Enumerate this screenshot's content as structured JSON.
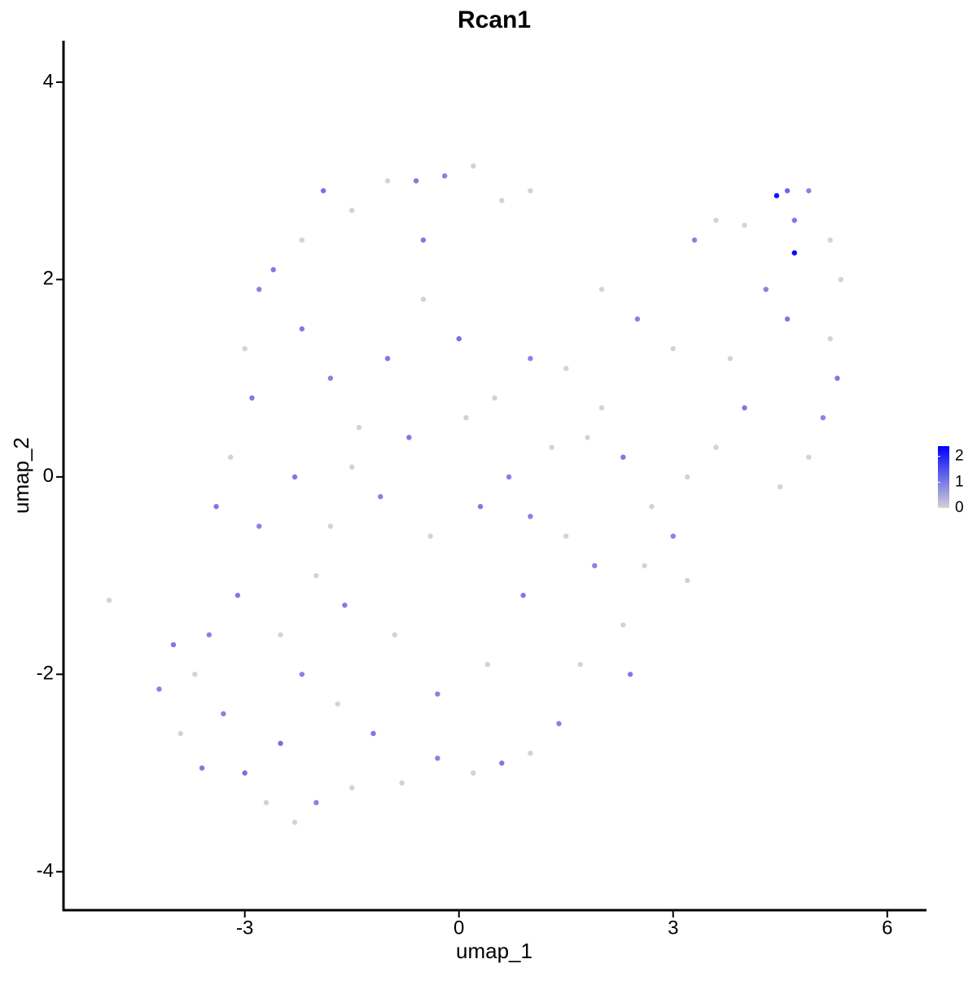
{
  "chart_data": {
    "type": "scatter",
    "title": "Rcan1",
    "x_label": "umap_1",
    "y_label": "umap_2",
    "x": [
      -4.9,
      -4.2,
      -3.9,
      -3.6,
      -3.3,
      -3.0,
      -2.7,
      -2.3,
      -2.0,
      -1.5,
      -3.5,
      -3.1,
      -2.8,
      -3.4,
      -3.2,
      -2.9,
      -3.0,
      -2.8,
      -2.6,
      -2.2,
      -1.9,
      -1.5,
      -1.0,
      -0.6,
      -0.2,
      0.2,
      0.6,
      1.0,
      -2.2,
      -1.8,
      -1.4,
      -1.0,
      -0.5,
      0.0,
      0.5,
      1.0,
      1.5,
      2.0,
      2.5,
      3.0,
      3.3,
      3.6,
      4.0,
      4.45,
      4.6,
      4.7,
      4.7,
      4.9,
      5.2,
      5.35,
      5.2,
      5.3,
      5.1,
      4.9,
      4.5,
      4.0,
      3.6,
      3.2,
      3.0,
      3.2,
      2.6,
      2.3,
      2.4,
      1.7,
      1.4,
      1.0,
      0.6,
      0.2,
      -0.3,
      -0.8,
      -1.2,
      -1.7,
      -2.2,
      -2.5,
      -1.6,
      -0.9,
      -0.3,
      0.4,
      0.9,
      1.5,
      1.0,
      0.3,
      -0.4,
      -1.1,
      -1.8,
      -2.3,
      -1.5,
      -0.7,
      0.1,
      0.7,
      1.3,
      2.0,
      2.3,
      2.7,
      1.9,
      -2.5,
      -3.7,
      -4.0,
      -2.0,
      -0.5,
      1.8,
      4.3,
      3.8,
      4.6
    ],
    "y": [
      -1.25,
      -2.15,
      -2.6,
      -2.95,
      -2.4,
      -3.0,
      -3.3,
      -3.5,
      -3.3,
      -3.15,
      -1.6,
      -1.2,
      -0.5,
      -0.3,
      0.2,
      0.8,
      1.3,
      1.9,
      2.1,
      2.4,
      2.9,
      2.7,
      3.0,
      3.0,
      3.05,
      3.15,
      2.8,
      2.9,
      1.5,
      1.0,
      0.5,
      1.2,
      1.8,
      1.4,
      0.8,
      1.2,
      1.1,
      1.9,
      1.6,
      1.3,
      2.4,
      2.6,
      2.55,
      2.85,
      2.9,
      2.27,
      2.6,
      2.9,
      2.4,
      2.0,
      1.4,
      1.0,
      0.6,
      0.2,
      -0.1,
      0.7,
      0.3,
      0.0,
      -0.6,
      -1.05,
      -0.9,
      -1.5,
      -2.0,
      -1.9,
      -2.5,
      -2.8,
      -2.9,
      -3.0,
      -2.85,
      -3.1,
      -2.6,
      -2.3,
      -2.0,
      -1.6,
      -1.3,
      -1.6,
      -2.2,
      -1.9,
      -1.2,
      -0.6,
      -0.4,
      -0.3,
      -0.6,
      -0.2,
      -0.5,
      0.0,
      0.1,
      0.4,
      0.6,
      0.0,
      0.3,
      0.7,
      0.2,
      -0.3,
      -0.9,
      -2.7,
      -2.0,
      -1.7,
      -1.0,
      2.4,
      0.4,
      1.9,
      1.2,
      1.6
    ],
    "expression": [
      0,
      0.9,
      0,
      1.0,
      0.9,
      1.1,
      0,
      0,
      0.9,
      0,
      0.9,
      1.0,
      0.9,
      1.0,
      0,
      1.0,
      0,
      0.9,
      1.0,
      0,
      1.1,
      0,
      0,
      1.0,
      0.9,
      0,
      0,
      0,
      1.0,
      0.9,
      0,
      1.0,
      0,
      1.1,
      0,
      0.9,
      0,
      0,
      0.9,
      0,
      0.9,
      0,
      0,
      2.2,
      1.2,
      2.3,
      1.0,
      0.9,
      0,
      0,
      0,
      1.0,
      0.9,
      0,
      0,
      1.0,
      0,
      0,
      0.9,
      0,
      0,
      0,
      1.0,
      0,
      0.9,
      0,
      1.0,
      0,
      0.9,
      0,
      1.0,
      0,
      0.9,
      0,
      1.0,
      0,
      0.9,
      0,
      1.0,
      0,
      0.9,
      1.0,
      0,
      0.9,
      0,
      1.0,
      0,
      1.0,
      0,
      0.9,
      0,
      0,
      1.0,
      0,
      0.9,
      1.1,
      0,
      1.0,
      0,
      1.0,
      0,
      0.9,
      0,
      1.0
    ],
    "xlim": [
      -5.54,
      6.55
    ],
    "ylim": [
      -4.39,
      4.42
    ],
    "xticks": [
      -3,
      0,
      3,
      6
    ],
    "yticks": [
      -4,
      -2,
      0,
      2,
      4
    ],
    "color_low": "#d3d3d3",
    "color_high": "#0000ff",
    "colorbar_lim": [
      0,
      2.4
    ],
    "colorbar_ticks": [
      0,
      1,
      2
    ]
  }
}
